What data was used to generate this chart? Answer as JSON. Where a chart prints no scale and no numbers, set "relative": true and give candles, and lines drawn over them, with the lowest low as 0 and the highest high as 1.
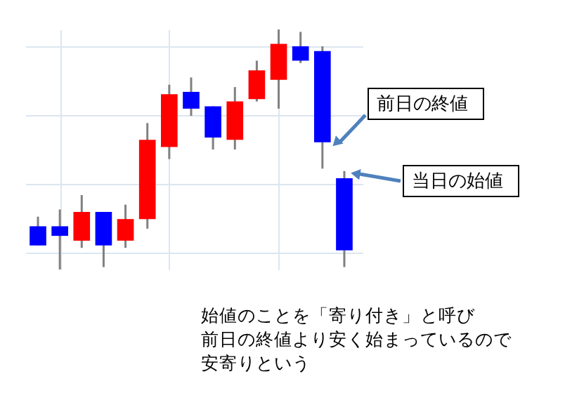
{
  "chart_data": {
    "type": "candlestick",
    "relative": true,
    "grid": true,
    "categories": [
      null,
      null,
      null,
      null,
      null,
      null,
      null,
      null,
      null,
      null,
      null,
      null,
      null,
      null,
      null
    ],
    "ohlc": [
      [
        0.18,
        0.22,
        0.1,
        0.1
      ],
      [
        0.18,
        0.25,
        0.0,
        0.14
      ],
      [
        0.12,
        0.31,
        0.09,
        0.24
      ],
      [
        0.24,
        0.24,
        0.01,
        0.1
      ],
      [
        0.12,
        0.27,
        0.09,
        0.21
      ],
      [
        0.21,
        0.61,
        0.17,
        0.54
      ],
      [
        0.51,
        0.77,
        0.46,
        0.73
      ],
      [
        0.74,
        0.8,
        0.64,
        0.67
      ],
      [
        0.68,
        0.68,
        0.5,
        0.55
      ],
      [
        0.54,
        0.76,
        0.5,
        0.7
      ],
      [
        0.71,
        0.87,
        0.7,
        0.83
      ],
      [
        0.79,
        1.0,
        0.67,
        0.94
      ],
      [
        0.93,
        0.99,
        0.86,
        0.87
      ],
      [
        0.91,
        0.93,
        0.42,
        0.53
      ],
      [
        0.38,
        0.41,
        0.01,
        0.08
      ]
    ],
    "colors": [
      "#0000ff",
      "#0000ff",
      "#ff0000",
      "#0000ff",
      "#ff0000",
      "#ff0000",
      "#ff0000",
      "#0000ff",
      "#0000ff",
      "#ff0000",
      "#ff0000",
      "#ff0000",
      "#0000ff",
      "#0000ff",
      "#0000ff"
    ],
    "annotations": [
      "前日の終値",
      "当日の始値",
      "始値のことを「寄り付き」と呼び",
      "前日の終値より安く始まっているので",
      "安寄りという"
    ]
  }
}
